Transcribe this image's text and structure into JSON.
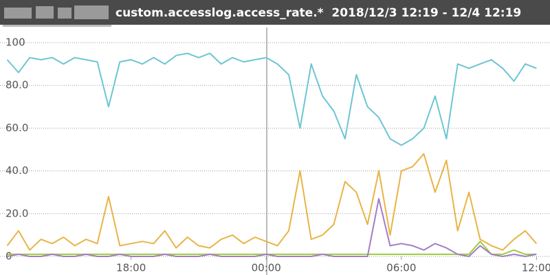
{
  "chart_data": {
    "type": "line",
    "title": "custom.accesslog.access_rate.*  2018/12/3 12:19 - 12/4 12:19",
    "x": [
      12.5,
      13,
      13.5,
      14,
      14.5,
      15,
      15.5,
      16,
      16.5,
      17,
      17.5,
      18,
      18.5,
      19,
      19.5,
      20,
      20.5,
      21,
      21.5,
      22,
      22.5,
      23,
      23.5,
      24,
      24.5,
      25,
      25.5,
      26,
      26.5,
      27,
      27.5,
      28,
      28.5,
      29,
      29.5,
      30,
      30.5,
      31,
      31.5,
      32,
      32.5,
      33,
      33.5,
      34,
      34.5,
      35,
      35.5,
      36
    ],
    "series": [
      {
        "color": "#6cc5d3",
        "values": [
          92,
          86,
          93,
          92,
          93,
          90,
          93,
          92,
          91,
          70,
          91,
          92,
          90,
          93,
          90,
          94,
          95,
          93,
          95,
          90,
          93,
          91,
          92,
          93,
          90,
          85,
          60,
          90,
          75,
          68,
          55,
          85,
          70,
          65,
          55,
          52,
          55,
          60,
          75,
          55,
          90,
          88,
          90,
          92,
          88,
          82,
          90,
          88
        ]
      },
      {
        "color": "#e8b445",
        "values": [
          5,
          12,
          3,
          8,
          6,
          9,
          5,
          8,
          6,
          28,
          5,
          6,
          7,
          6,
          12,
          4,
          9,
          5,
          4,
          8,
          10,
          6,
          9,
          7,
          5,
          12,
          40,
          8,
          10,
          15,
          35,
          30,
          15,
          40,
          10,
          40,
          42,
          48,
          30,
          45,
          12,
          30,
          8,
          5,
          3,
          8,
          12,
          6
        ]
      },
      {
        "color": "#9ccc3c",
        "values": [
          1,
          1,
          1,
          1,
          1,
          1,
          1,
          1,
          1,
          1,
          1,
          1,
          1,
          1,
          1,
          1,
          1,
          1,
          1,
          1,
          1,
          1,
          1,
          1,
          1,
          1,
          1,
          1,
          1,
          1,
          1,
          1,
          1,
          1,
          1,
          1,
          1,
          1,
          1,
          1,
          1,
          1,
          7,
          1,
          1,
          3,
          1,
          1
        ]
      },
      {
        "color": "#a57cc4",
        "values": [
          0,
          1,
          0,
          0,
          1,
          0,
          0,
          1,
          0,
          0,
          1,
          0,
          0,
          0,
          1,
          0,
          0,
          0,
          1,
          0,
          0,
          0,
          0,
          1,
          0,
          0,
          0,
          0,
          1,
          0,
          0,
          0,
          0,
          27,
          5,
          6,
          5,
          3,
          6,
          4,
          1,
          0,
          5,
          1,
          0,
          1,
          0,
          1
        ]
      }
    ],
    "xlim": [
      12.18,
      36.6
    ],
    "xticks": [
      {
        "value": 18,
        "label": "18:00"
      },
      {
        "value": 24,
        "label": "00:00"
      },
      {
        "value": 30,
        "label": "06:00"
      },
      {
        "value": 36,
        "label": "12:00"
      }
    ],
    "ylim": [
      -0.5,
      103
    ],
    "yticks": [
      0,
      {
        "value": 20,
        "label": "20.0"
      },
      {
        "value": 40,
        "label": "40.0"
      },
      {
        "value": 60,
        "label": "60.0"
      },
      {
        "value": 80,
        "label": "80.0"
      },
      100
    ],
    "grid": true
  }
}
